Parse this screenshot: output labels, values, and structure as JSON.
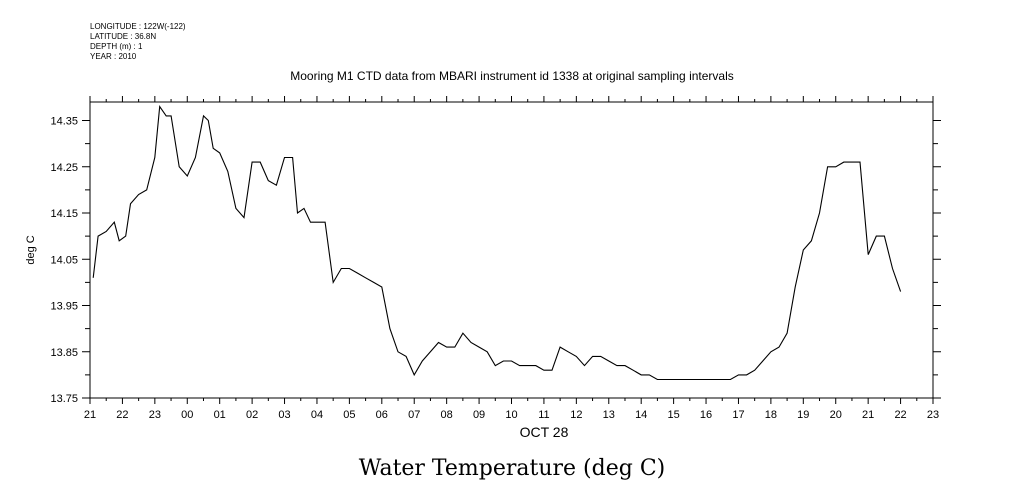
{
  "header": {
    "longitude": "LONGITUDE : 122W(-122)",
    "latitude": "LATITUDE : 36.8N",
    "depth": "DEPTH (m) : 1",
    "year": "YEAR : 2010"
  },
  "chart_data": {
    "type": "line",
    "title": "Mooring M1 CTD data from MBARI instrument id 1338 at original sampling intervals",
    "xlabel": "OCT 28",
    "ylabel": "deg C",
    "subtitle": "Water Temperature (deg C)",
    "x_ticks": [
      "21",
      "22",
      "23",
      "00",
      "01",
      "02",
      "03",
      "04",
      "05",
      "06",
      "07",
      "08",
      "09",
      "10",
      "11",
      "12",
      "13",
      "14",
      "15",
      "16",
      "17",
      "18",
      "19",
      "20",
      "21",
      "22",
      "23"
    ],
    "x_range_hours": [
      -3,
      23
    ],
    "y_ticks": [
      "13.75",
      "13.85",
      "13.95",
      "14.05",
      "14.15",
      "14.25",
      "14.35"
    ],
    "ylim": [
      13.75,
      14.39
    ],
    "series": [
      {
        "x_hours": [
          -2.9,
          -2.75,
          -2.5,
          -2.25,
          -2.1,
          -1.9,
          -1.75,
          -1.5,
          -1.25,
          -1.0,
          -0.85,
          -0.65,
          -0.5,
          -0.25,
          0.0,
          0.25,
          0.5,
          0.65,
          0.8,
          1.0,
          1.25,
          1.5,
          1.75,
          2.0,
          2.25,
          2.5,
          2.75,
          3.0,
          3.25,
          3.4,
          3.6,
          3.8,
          4.0,
          4.25,
          4.5,
          4.75,
          5.0,
          5.25,
          5.5,
          5.75,
          6.0,
          6.25,
          6.5,
          6.75,
          7.0,
          7.25,
          7.5,
          7.75,
          8.0,
          8.25,
          8.5,
          8.75,
          9.0,
          9.25,
          9.5,
          9.75,
          10.0,
          10.25,
          10.5,
          10.75,
          11.0,
          11.25,
          11.5,
          11.75,
          12.0,
          12.25,
          12.5,
          12.75,
          13.0,
          13.25,
          13.5,
          13.75,
          14.0,
          14.25,
          14.5,
          14.75,
          15.0,
          15.25,
          15.5,
          15.75,
          16.0,
          16.25,
          16.5,
          16.75,
          17.0,
          17.25,
          17.5,
          17.75,
          18.0,
          18.25,
          18.5,
          18.75,
          19.0,
          19.25,
          19.5,
          19.75,
          20.0,
          20.25,
          20.5,
          20.75,
          21.0,
          21.25,
          21.5,
          21.75,
          22.0
        ],
        "values": [
          14.01,
          14.1,
          14.11,
          14.13,
          14.09,
          14.1,
          14.17,
          14.19,
          14.2,
          14.27,
          14.38,
          14.36,
          14.36,
          14.25,
          14.23,
          14.27,
          14.36,
          14.35,
          14.29,
          14.28,
          14.24,
          14.16,
          14.14,
          14.26,
          14.26,
          14.22,
          14.21,
          14.27,
          14.27,
          14.15,
          14.16,
          14.13,
          14.13,
          14.13,
          14.0,
          14.03,
          14.03,
          14.02,
          14.01,
          14.0,
          13.99,
          13.9,
          13.85,
          13.84,
          13.8,
          13.83,
          13.85,
          13.87,
          13.86,
          13.86,
          13.89,
          13.87,
          13.86,
          13.85,
          13.82,
          13.83,
          13.83,
          13.82,
          13.82,
          13.82,
          13.81,
          13.81,
          13.86,
          13.85,
          13.84,
          13.82,
          13.84,
          13.84,
          13.83,
          13.82,
          13.82,
          13.81,
          13.8,
          13.8,
          13.79,
          13.79,
          13.79,
          13.79,
          13.79,
          13.79,
          13.79,
          13.79,
          13.79,
          13.79,
          13.8,
          13.8,
          13.81,
          13.83,
          13.85,
          13.86,
          13.89,
          13.99,
          14.07,
          14.09,
          14.15,
          14.25,
          14.25,
          14.26,
          14.26,
          14.26,
          14.06,
          14.1,
          14.1,
          14.03,
          13.98
        ]
      }
    ],
    "grid": false,
    "legend": "none"
  }
}
